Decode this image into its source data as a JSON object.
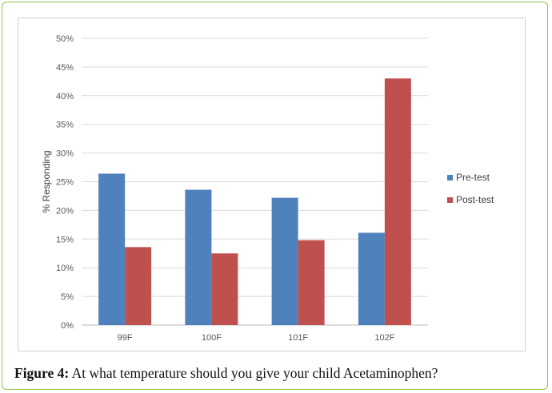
{
  "chart_data": {
    "type": "bar",
    "categories": [
      "99F",
      "100F",
      "101F",
      "102F"
    ],
    "series": [
      {
        "name": "Pre-test",
        "values": [
          26.4,
          23.6,
          22.2,
          16.1
        ],
        "color": "#4f81bd"
      },
      {
        "name": "Post-test",
        "values": [
          13.6,
          12.5,
          14.8,
          43.0
        ],
        "color": "#c0504d"
      }
    ],
    "ylabel": "% Responding",
    "xlabel": "",
    "ylim": [
      0,
      50
    ],
    "yticks": [
      "0%",
      "5%",
      "10%",
      "15%",
      "20%",
      "25%",
      "30%",
      "35%",
      "40%",
      "45%",
      "50%"
    ],
    "grid": true,
    "legend": "right"
  },
  "caption": {
    "label": "Figure 4:",
    "text": " At what temperature should you give your child Acetaminophen?"
  }
}
